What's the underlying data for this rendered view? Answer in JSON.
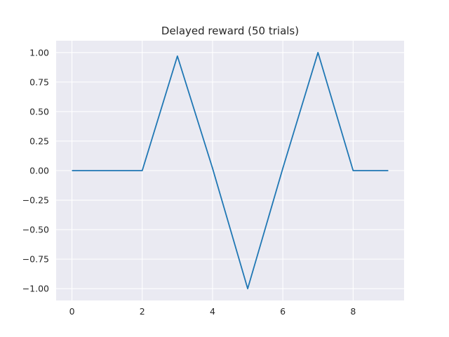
{
  "chart_data": {
    "type": "line",
    "title": "Delayed reward (50 trials)",
    "xlabel": "",
    "ylabel": "",
    "xlim": [
      -0.45,
      9.45
    ],
    "ylim": [
      -1.1,
      1.1
    ],
    "xticks": [
      0,
      2,
      4,
      6,
      8
    ],
    "xtick_labels": [
      "0",
      "2",
      "4",
      "6",
      "8"
    ],
    "yticks": [
      1.0,
      0.75,
      0.5,
      0.25,
      0.0,
      -0.25,
      -0.5,
      -0.75,
      -1.0
    ],
    "ytick_labels": [
      "1.00",
      "0.75",
      "0.50",
      "0.25",
      "0.00",
      "−0.25",
      "−0.50",
      "−0.75",
      "−1.00"
    ],
    "grid": true,
    "series": [
      {
        "x": [
          0,
          1,
          2,
          3,
          4,
          5,
          6,
          7,
          8,
          9
        ],
        "y": [
          0,
          0,
          0,
          0.97,
          0.02,
          -1.0,
          0.02,
          1.0,
          0,
          0
        ]
      }
    ],
    "colors": {
      "background": "#eaeaf2",
      "grid": "#ffffff",
      "line": "#1f77b4",
      "text": "#262626"
    }
  }
}
